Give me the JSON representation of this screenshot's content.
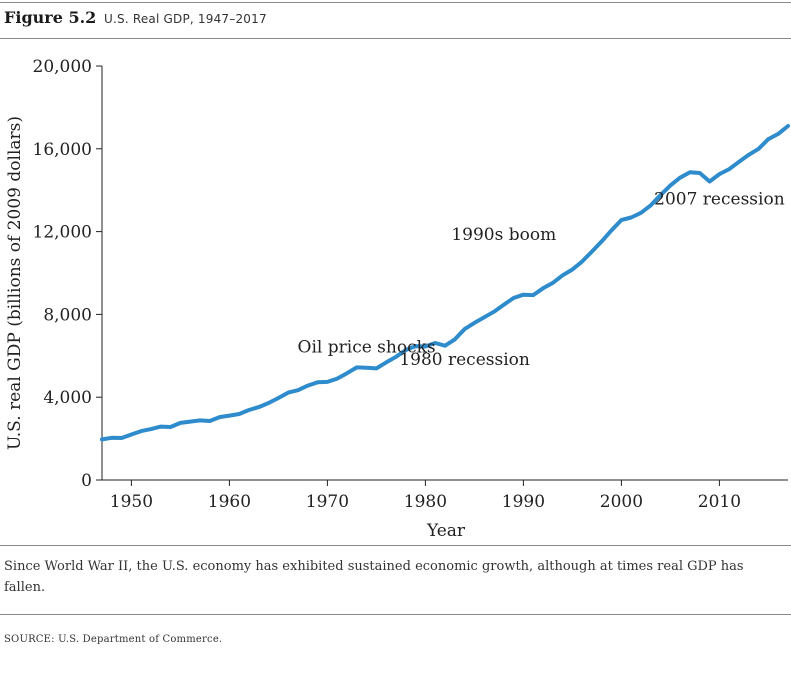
{
  "figure": {
    "label": "Figure 5.2",
    "title": "U.S. Real GDP, 1947–2017"
  },
  "caption": "Since World War II, the U.S. economy has exhibited sustained economic growth, although at times real GDP has fallen.",
  "source": "SOURCE: U.S. Department of Commerce.",
  "colors": {
    "line": "#2e8bcc",
    "axis": "#222222"
  },
  "chart_data": {
    "type": "line",
    "xlabel": "Year",
    "ylabel": "U.S. real GDP (billions of 2009 dollars)",
    "xlim": [
      1947,
      2017
    ],
    "ylim": [
      0,
      20000
    ],
    "x_ticks": [
      1950,
      1960,
      1970,
      1980,
      1990,
      2000,
      2010
    ],
    "y_ticks": [
      0,
      4000,
      8000,
      12000,
      16000,
      20000
    ],
    "y_tick_labels": [
      "0",
      "4,000",
      "8,000",
      "12,000",
      "16,000",
      "20,000"
    ],
    "grid": false,
    "legend": "none",
    "series": [
      {
        "x": [
          1947,
          1948,
          1949,
          1950,
          1951,
          1952,
          1953,
          1954,
          1955,
          1956,
          1957,
          1958,
          1959,
          1960,
          1961,
          1962,
          1963,
          1964,
          1965,
          1966,
          1967,
          1968,
          1969,
          1970,
          1971,
          1972,
          1973,
          1974,
          1975,
          1976,
          1977,
          1978,
          1979,
          1980,
          1981,
          1982,
          1983,
          1984,
          1985,
          1986,
          1987,
          1988,
          1989,
          1990,
          1991,
          1992,
          1993,
          1994,
          1995,
          1996,
          1997,
          1998,
          1999,
          2000,
          2001,
          2002,
          2003,
          2004,
          2005,
          2006,
          2007,
          2008,
          2009,
          2010,
          2011,
          2012,
          2013,
          2014,
          2015,
          2016,
          2017
        ],
        "y": [
          1960,
          2040,
          2030,
          2200,
          2360,
          2460,
          2580,
          2560,
          2760,
          2820,
          2880,
          2850,
          3040,
          3110,
          3190,
          3380,
          3520,
          3720,
          3960,
          4220,
          4340,
          4560,
          4720,
          4740,
          4900,
          5160,
          5440,
          5420,
          5390,
          5680,
          5950,
          6280,
          6470,
          6450,
          6620,
          6490,
          6790,
          7290,
          7590,
          7860,
          8130,
          8470,
          8790,
          8950,
          8930,
          9260,
          9520,
          9890,
          10170,
          10560,
          11040,
          11530,
          12070,
          12560,
          12680,
          12910,
          13270,
          13770,
          14230,
          14610,
          14870,
          14830,
          14420,
          14780,
          15020,
          15370,
          15710,
          16000,
          16470,
          16720,
          17100
        ]
      }
    ],
    "annotations": [
      {
        "text": "Oil price shocks",
        "x": 1974,
        "y": 6150
      },
      {
        "text": "1980 recession",
        "x": 1984,
        "y": 5550
      },
      {
        "text": "1990s boom",
        "x": 1988,
        "y": 11600
      },
      {
        "text": "2007 recession",
        "x": 2010,
        "y": 13300
      }
    ]
  }
}
